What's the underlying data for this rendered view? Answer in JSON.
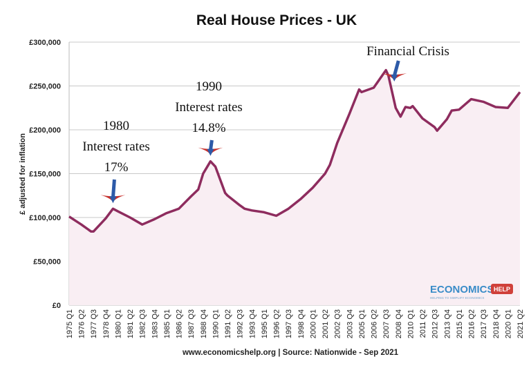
{
  "chart_data": {
    "type": "line",
    "title": "Real House Prices - UK",
    "ylabel": "£ adjusted for inflation",
    "xlabel": "",
    "ylim": [
      0,
      300000
    ],
    "yticks": [
      "£0",
      "£50,000",
      "£100,000",
      "£150,000",
      "£200,000",
      "£250,000",
      "£300,000"
    ],
    "grid": true,
    "line_color": "#8e2c5e",
    "fill_color": "#f9eef3",
    "x_tick_labels": [
      "1975 Q1",
      "1976 Q2",
      "1977 Q3",
      "1978 Q4",
      "1980 Q1",
      "1981 Q2",
      "1982 Q3",
      "1983 Q4",
      "1985 Q1",
      "1986 Q2",
      "1987 Q3",
      "1988 Q4",
      "1990 Q1",
      "1991 Q2",
      "1992 Q3",
      "1993 Q4",
      "1995 Q1",
      "1996 Q2",
      "1997 Q3",
      "1998 Q4",
      "2000 Q1",
      "2001 Q2",
      "2002 Q3",
      "2003 Q4",
      "2005 Q1",
      "2006 Q2",
      "2007 Q3",
      "2008 Q4",
      "2010 Q1",
      "2011 Q2",
      "2012 Q3",
      "2013 Q4",
      "2015 Q1",
      "2016 Q2",
      "2017 Q3",
      "2018 Q4",
      "2020 Q1",
      "2021 Q2"
    ],
    "points": [
      [
        "1975 Q1",
        101000
      ],
      [
        "1976 Q2",
        92000
      ],
      [
        "1977 Q2",
        84000
      ],
      [
        "1977 Q3",
        84000
      ],
      [
        "1978 Q4",
        99000
      ],
      [
        "1979 Q3",
        110000
      ],
      [
        "1980 Q1",
        107000
      ],
      [
        "1981 Q2",
        100000
      ],
      [
        "1982 Q3",
        92000
      ],
      [
        "1983 Q4",
        98000
      ],
      [
        "1985 Q1",
        105000
      ],
      [
        "1986 Q2",
        110000
      ],
      [
        "1987 Q3",
        124000
      ],
      [
        "1988 Q2",
        132000
      ],
      [
        "1988 Q4",
        150000
      ],
      [
        "1989 Q3",
        164000
      ],
      [
        "1990 Q1",
        158000
      ],
      [
        "1991 Q1",
        128000
      ],
      [
        "1991 Q2",
        125000
      ],
      [
        "1992 Q3",
        114000
      ],
      [
        "1993 Q1",
        110000
      ],
      [
        "1993 Q4",
        108000
      ],
      [
        "1995 Q1",
        106000
      ],
      [
        "1996 Q2",
        102000
      ],
      [
        "1997 Q3",
        110000
      ],
      [
        "1998 Q4",
        121000
      ],
      [
        "2000 Q1",
        134000
      ],
      [
        "2001 Q2",
        150000
      ],
      [
        "2001 Q4",
        160000
      ],
      [
        "2002 Q3",
        185000
      ],
      [
        "2003 Q4",
        218000
      ],
      [
        "2004 Q4",
        246000
      ],
      [
        "2005 Q1",
        243000
      ],
      [
        "2006 Q2",
        248000
      ],
      [
        "2007 Q3",
        268000
      ],
      [
        "2007 Q4",
        262000
      ],
      [
        "2008 Q3",
        225000
      ],
      [
        "2009 Q1",
        215000
      ],
      [
        "2009 Q3",
        226000
      ],
      [
        "2010 Q1",
        225000
      ],
      [
        "2010 Q2",
        227000
      ],
      [
        "2011 Q2",
        213000
      ],
      [
        "2012 Q3",
        203000
      ],
      [
        "2012 Q4",
        199000
      ],
      [
        "2013 Q4",
        212000
      ],
      [
        "2014 Q2",
        222000
      ],
      [
        "2015 Q1",
        223000
      ],
      [
        "2016 Q2",
        235000
      ],
      [
        "2017 Q3",
        232000
      ],
      [
        "2018 Q4",
        226000
      ],
      [
        "2020 Q1",
        225000
      ],
      [
        "2021 Q2",
        243000
      ]
    ],
    "annotations": [
      {
        "lines": [
          "1980",
          "Interest rates",
          "17%"
        ],
        "target": "1979 Q3"
      },
      {
        "lines": [
          "1990",
          "Interest rates",
          "14.8%"
        ],
        "target": "1989 Q3"
      },
      {
        "lines": [
          "Financial Crisis"
        ],
        "target": "2008 Q3"
      }
    ],
    "arrow_colors": {
      "shaft": "#2d5aa8",
      "wings": "#c8322e"
    },
    "source": "www.economicshelp.org | Source: Nationwide - Sep 2021"
  },
  "logo": {
    "main": "ECONOMICS",
    "badge": "HELP",
    "tagline": "HELPING TO SIMPLIFY ECONOMICS",
    "colors": {
      "main": "#3a8cc8",
      "badge": "#d0403a"
    }
  }
}
